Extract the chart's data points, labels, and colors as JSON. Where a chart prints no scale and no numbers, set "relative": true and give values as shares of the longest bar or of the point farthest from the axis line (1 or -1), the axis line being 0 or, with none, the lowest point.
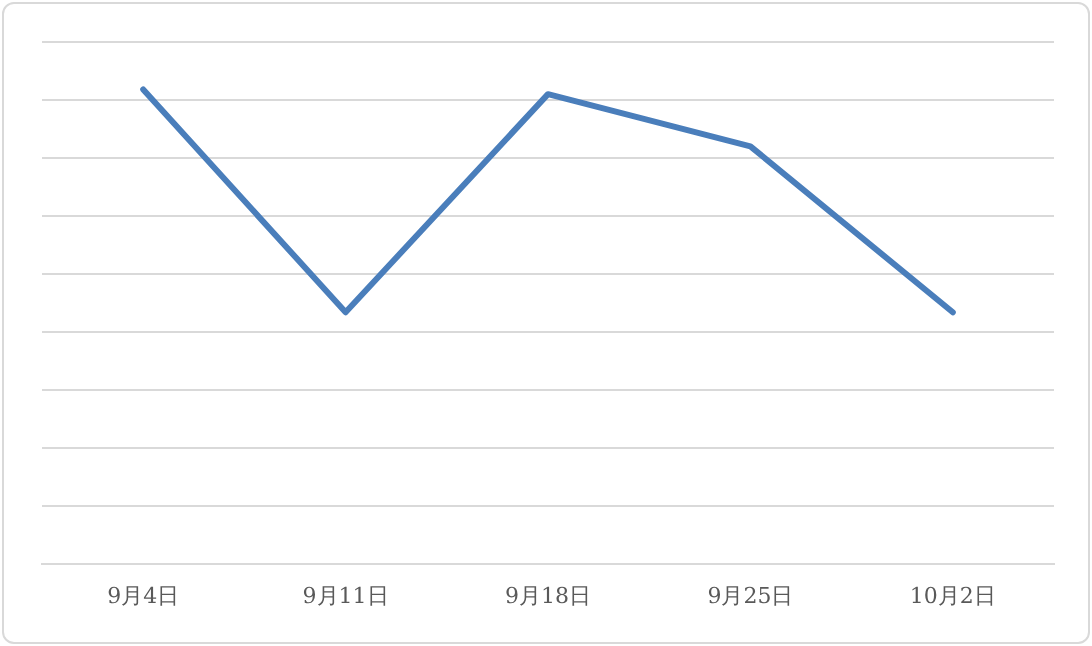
{
  "chart_data": {
    "type": "line",
    "categories": [
      "9月4日",
      "9月11日",
      "9月18日",
      "9月25日",
      "10月2日"
    ],
    "series": [
      {
        "color": "#4a7ebb",
        "values": [
          1,
          0.53,
          0.99,
          0.88,
          0.53
        ]
      }
    ],
    "relative": true,
    "grid": "y",
    "legend": false,
    "marker": "none",
    "line_style": "solid"
  }
}
